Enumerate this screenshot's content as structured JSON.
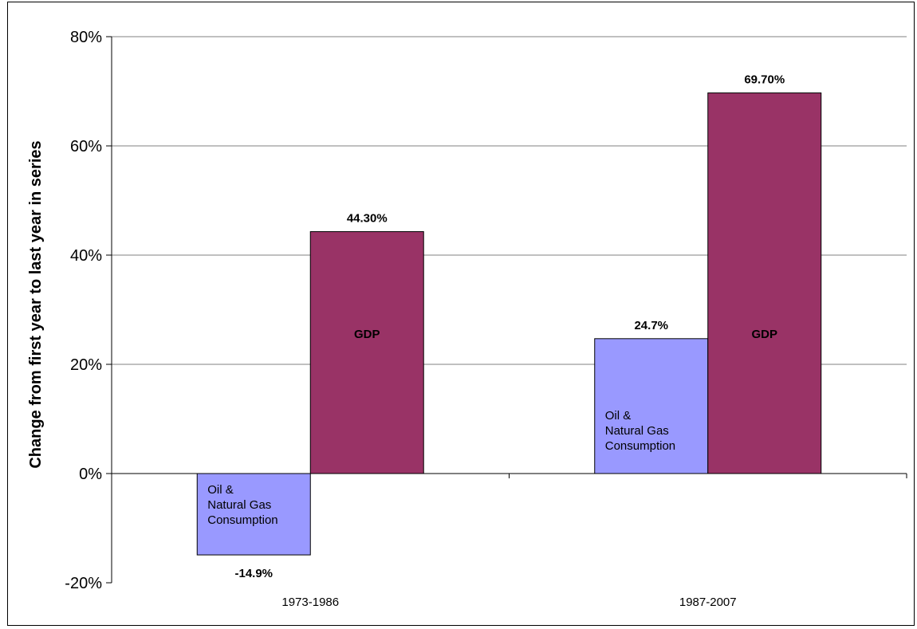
{
  "chart_data": {
    "type": "bar",
    "title": "",
    "xlabel": "",
    "ylabel": "Change from first year to last year in series",
    "categories": [
      "1973-1986",
      "1987-2007"
    ],
    "ylim": [
      -20,
      80
    ],
    "yticks": [
      -20,
      0,
      20,
      40,
      60,
      80
    ],
    "ytick_labels": [
      "-20%",
      "0%",
      "20%",
      "40%",
      "60%",
      "80%"
    ],
    "grid": true,
    "legend": "none",
    "series": [
      {
        "label_lines": [
          "Oil &",
          "Natural Gas",
          "Consumption"
        ],
        "color": "#9999FF",
        "values": [
          -14.9,
          24.7
        ],
        "data_labels": [
          "-14.9%",
          "24.7%"
        ]
      },
      {
        "label_lines": [
          "GDP"
        ],
        "color": "#993366",
        "values": [
          44.3,
          69.7
        ],
        "data_labels": [
          "44.30%",
          "69.70%"
        ]
      }
    ]
  }
}
